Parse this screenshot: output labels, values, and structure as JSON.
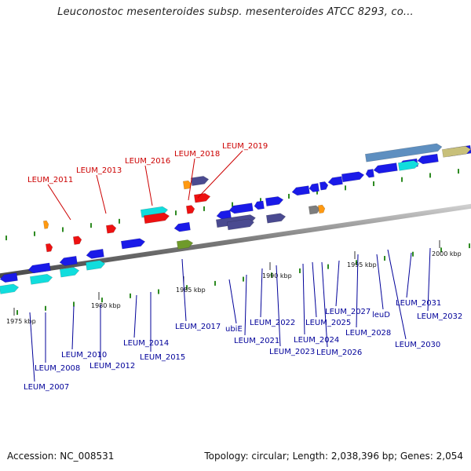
{
  "title": "Leuconostoc mesenteroides subsp. mesenteroides ATCC 8293, co...",
  "footer": {
    "accession": "Accession: NC_008531",
    "stats": "Topology: circular; Length: 2,038,396 bp; Genes: 2,054"
  },
  "colors": {
    "red": "#ee1111",
    "blue": "#1a1ae8",
    "cyan": "#11dddd",
    "slate": "#4a4a90",
    "olive": "#6f9a2a",
    "orange": "#ff9911",
    "gray": "#7d7d7d",
    "steel": "#5e8fc0",
    "khaki": "#c8c07a",
    "red_label": "#cc0000",
    "blue_label": "#000099"
  },
  "scale_ticks": [
    "1975 kbp",
    "1980 kbp",
    "1985 kbp",
    "1990 kbp",
    "1995 kbp",
    "2000 kbp"
  ],
  "genes_top": [
    "LEUM_2011",
    "LEUM_2013",
    "LEUM_2016",
    "LEUM_2018",
    "LEUM_2019"
  ],
  "genes_bottom": [
    "LEUM_2007",
    "LEUM_2008",
    "LEUM_2010",
    "LEUM_2012",
    "LEUM_2014",
    "LEUM_2015",
    "LEUM_2017",
    "ubiE",
    "LEUM_2021",
    "LEUM_2022",
    "LEUM_2023",
    "LEUM_2024",
    "LEUM_2025",
    "LEUM_2026",
    "LEUM_2027",
    "LEUM_2028",
    "leuD",
    "LEUM_2030",
    "LEUM_2031",
    "LEUM_2032"
  ]
}
